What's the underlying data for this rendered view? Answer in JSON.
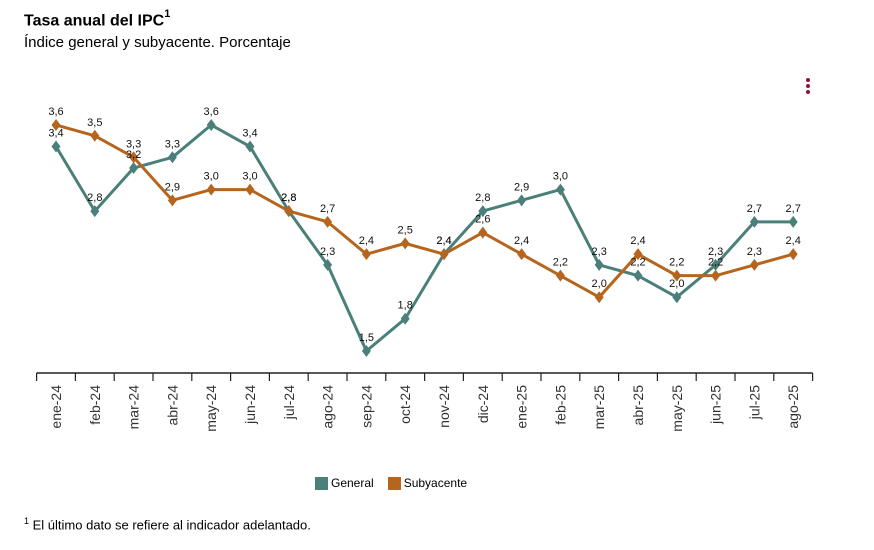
{
  "title": "Tasa anual del IPC",
  "title_sup": "1",
  "subtitle": "Índice general y subyacente. Porcentaje",
  "footnote_marker": "1",
  "footnote": "El último dato se refiere al indicador adelantado.",
  "colors": {
    "general": "#4a7f7a",
    "subyacente": "#b5651d",
    "axis": "#222222",
    "menu": "#8a1538"
  },
  "chart_data": {
    "type": "line",
    "title": "Tasa anual del IPC",
    "xlabel": "",
    "ylabel": "",
    "ylim": [
      1.5,
      3.6
    ],
    "grid": false,
    "legend_position": "bottom-center",
    "categories": [
      "ene-24",
      "feb-24",
      "mar-24",
      "abr-24",
      "may-24",
      "jun-24",
      "jul-24",
      "ago-24",
      "sep-24",
      "oct-24",
      "nov-24",
      "dic-24",
      "ene-25",
      "feb-25",
      "mar-25",
      "abr-25",
      "may-25",
      "jun-25",
      "jul-25",
      "ago-25"
    ],
    "series": [
      {
        "name": "General",
        "color": "#4a7f7a",
        "values": [
          3.4,
          2.8,
          3.2,
          3.3,
          3.6,
          3.4,
          2.8,
          2.3,
          1.5,
          1.8,
          2.4,
          2.8,
          2.9,
          3.0,
          2.3,
          2.2,
          2.0,
          2.3,
          2.7,
          2.7
        ],
        "labels": [
          "3,4",
          "2,8",
          "3,2",
          "3,3",
          "3,6",
          "3,4",
          "2,8",
          "2,3",
          "1,5",
          "1,8",
          "2,4",
          "2,8",
          "2,9",
          "3,0",
          "2,3",
          "2,2",
          "2,0",
          "2,3",
          "2,7",
          "2,7"
        ]
      },
      {
        "name": "Subyacente",
        "color": "#b5651d",
        "values": [
          3.6,
          3.5,
          3.3,
          2.9,
          3.0,
          3.0,
          2.8,
          2.7,
          2.4,
          2.5,
          2.4,
          2.6,
          2.4,
          2.2,
          2.0,
          2.4,
          2.2,
          2.2,
          2.3,
          2.4
        ],
        "labels": [
          "3,6",
          "3,5",
          "3,3",
          "2,9",
          "3,0",
          "3,0",
          "2,8",
          "2,7",
          "2,4",
          "2,5",
          "2,4",
          "2,6",
          "2,4",
          "2,2",
          "2,0",
          "2,4",
          "2,2",
          "2,2",
          "2,3",
          "2,4"
        ]
      }
    ]
  }
}
